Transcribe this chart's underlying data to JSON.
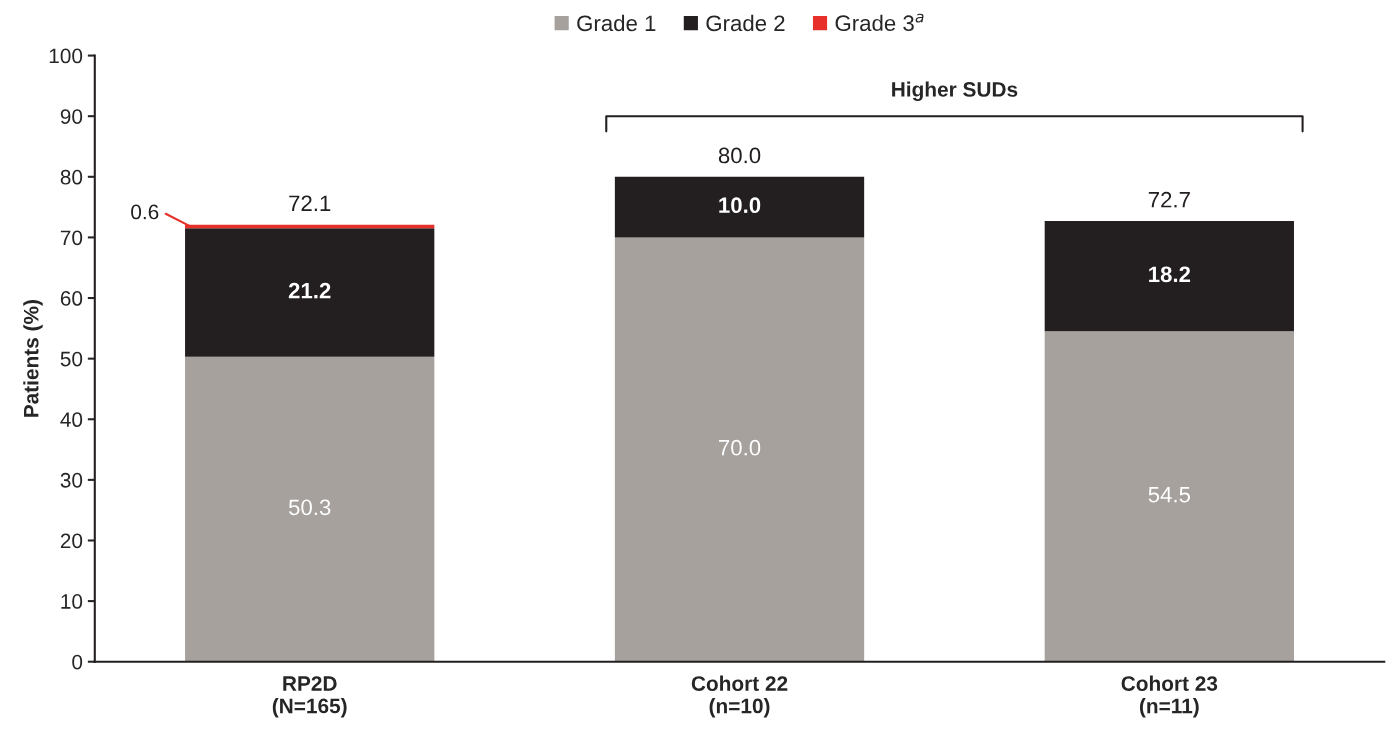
{
  "chart_data": {
    "type": "bar",
    "stacked": true,
    "ylabel": "Patients (%)",
    "categories": [
      "RP2D\n(N=165)",
      "Cohort 22\n(n=10)",
      "Cohort 23\n(n=11)"
    ],
    "series": [
      {
        "name": "Grade 1",
        "color": "#a7a19e",
        "values": [
          50.3,
          70.0,
          54.5
        ],
        "value_labels": [
          "50.3",
          "70.0",
          "54.5"
        ]
      },
      {
        "name": "Grade 2",
        "color": "#231f20",
        "values": [
          21.2,
          10.0,
          18.2
        ],
        "value_labels": [
          "21.2",
          "10.0",
          "18.2"
        ]
      },
      {
        "name": "Grade 3$^{a}$",
        "color": "#e8302a",
        "values": [
          0.6,
          null,
          null
        ],
        "value_labels": [
          "0.6",
          null,
          null
        ]
      }
    ],
    "totals": [
      "72.1",
      "80.0",
      "72.7"
    ],
    "annotations": [
      "Higher SUDs"
    ],
    "ylim": [
      0,
      100
    ],
    "yticks": [
      0,
      10,
      20,
      30,
      40,
      50,
      60,
      70,
      80,
      90,
      100
    ],
    "grid": false,
    "legend": "top"
  }
}
